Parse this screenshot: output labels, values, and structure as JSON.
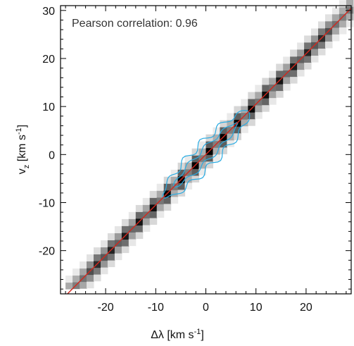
{
  "chart_data": {
    "type": "heatmap",
    "title": "",
    "xlabel": "Δλ [km s",
    "xlabel_sup": "-1",
    "xlabel_close": "]",
    "ylabel": "v",
    "ylabel_sub": "z",
    "ylabel_unit": " [km s",
    "ylabel_sup": "-1",
    "ylabel_close": "]",
    "xlim": [
      -29,
      29
    ],
    "ylim": [
      -29,
      31
    ],
    "x_ticks": [
      -20,
      -10,
      0,
      10,
      20
    ],
    "x_tick_labels": [
      "-20",
      "-10",
      "0",
      "10",
      "20"
    ],
    "y_ticks": [
      -20,
      -10,
      0,
      10,
      20,
      30
    ],
    "y_tick_labels": [
      "-20",
      "-10",
      "0",
      "10",
      "20",
      "30"
    ],
    "grid": false,
    "annotation": "Pearson correlation:  0.96",
    "fit_line": {
      "slope": 1.05,
      "intercept": 0.0,
      "color": "#d2281e"
    },
    "density_colormap": "white-to-black",
    "contour_color": "#29abe2",
    "density_band": {
      "slope": 1.05,
      "intercept": 0.0,
      "x_range": [
        -28,
        28
      ]
    }
  }
}
